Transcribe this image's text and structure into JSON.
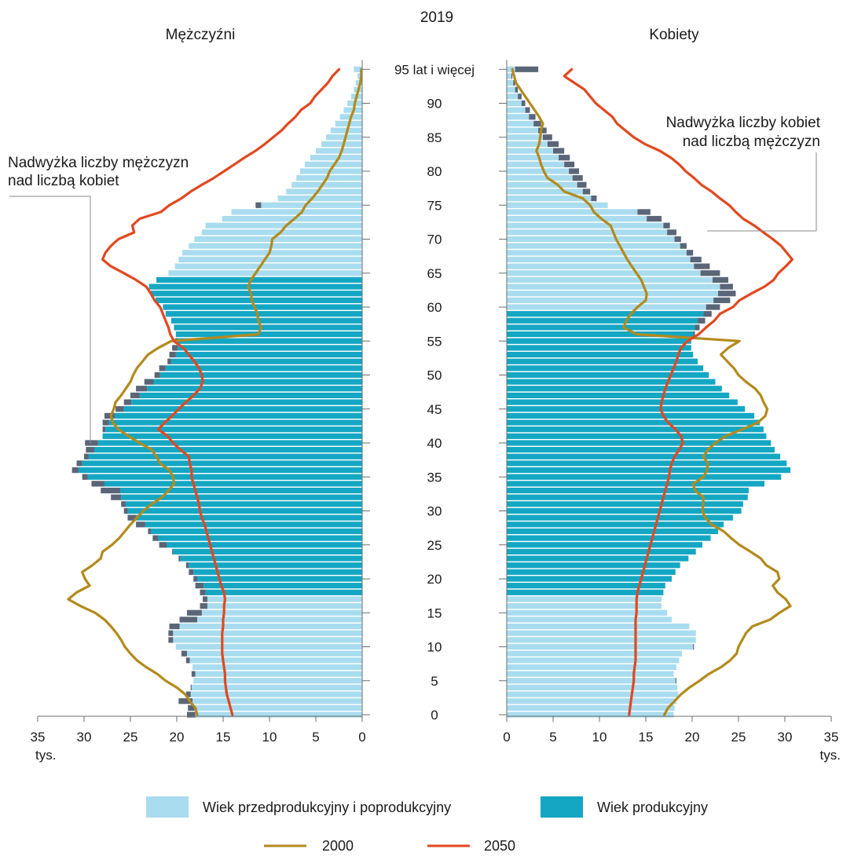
{
  "chart_data": {
    "type": "population-pyramid",
    "title": "2019",
    "left_title": "Mężczyźni",
    "right_title": "Kobiety",
    "x_unit": "tys.",
    "xlim": [
      0,
      35
    ],
    "x_ticks": [
      0,
      5,
      10,
      15,
      20,
      25,
      30,
      35
    ],
    "age_tick_labels": [
      "0",
      "5",
      "10",
      "15",
      "20",
      "25",
      "30",
      "35",
      "40",
      "45",
      "50",
      "55",
      "60",
      "65",
      "70",
      "75",
      "80",
      "85",
      "90",
      "95 lat i więcej"
    ],
    "annotations": {
      "male_surplus": [
        "Nadwyżka liczby mężczyzn",
        "nad liczbą kobiet"
      ],
      "female_surplus": [
        "Nadwyżka liczby kobiet",
        "nad liczbą mężczyzn"
      ]
    },
    "legend": {
      "nonworking_label": "Wiek przedprodukcyjny i poprodukcyjny",
      "working_label": "Wiek produkcyjny",
      "line_2000_label": "2000",
      "line_2050_label": "2050"
    },
    "colors": {
      "nonworking": "#a9dcef",
      "working": "#14a7c4",
      "surplus": "#5a6577",
      "line_2000": "#b38a1b",
      "line_2050": "#e1481f"
    },
    "working_age": {
      "male": [
        18,
        64
      ],
      "female": [
        18,
        59
      ]
    },
    "ages": [
      0,
      1,
      2,
      3,
      4,
      5,
      6,
      7,
      8,
      9,
      10,
      11,
      12,
      13,
      14,
      15,
      16,
      17,
      18,
      19,
      20,
      21,
      22,
      23,
      24,
      25,
      26,
      27,
      28,
      29,
      30,
      31,
      32,
      33,
      34,
      35,
      36,
      37,
      38,
      39,
      40,
      41,
      42,
      43,
      44,
      45,
      46,
      47,
      48,
      49,
      50,
      51,
      52,
      53,
      54,
      55,
      56,
      57,
      58,
      59,
      60,
      61,
      62,
      63,
      64,
      65,
      66,
      67,
      68,
      69,
      70,
      71,
      72,
      73,
      74,
      75,
      76,
      77,
      78,
      79,
      80,
      81,
      82,
      83,
      84,
      85,
      86,
      87,
      88,
      89,
      90,
      91,
      92,
      93,
      94,
      95
    ],
    "male_2019": [
      18.9,
      18.8,
      19.8,
      19.0,
      18.5,
      18.2,
      18.4,
      18.3,
      19.0,
      19.5,
      20.1,
      20.9,
      20.9,
      20.8,
      19.7,
      18.9,
      17.5,
      17.2,
      17.5,
      18.0,
      18.2,
      18.7,
      19.0,
      19.8,
      20.5,
      21.9,
      22.6,
      23.1,
      24.4,
      25.3,
      25.7,
      26.0,
      27.1,
      28.2,
      29.2,
      30.2,
      31.3,
      30.8,
      30.0,
      29.8,
      29.9,
      28.0,
      28.0,
      28.0,
      27.8,
      26.6,
      25.7,
      25.0,
      24.4,
      23.5,
      22.4,
      21.9,
      21.0,
      20.8,
      20.5,
      20.2,
      20.1,
      20.3,
      20.6,
      21.2,
      21.5,
      22.3,
      22.8,
      23.0,
      22.2,
      20.9,
      20.2,
      19.8,
      19.4,
      18.7,
      18.1,
      17.3,
      16.9,
      15.1,
      14.1,
      11.5,
      9.1,
      8.2,
      7.6,
      7.1,
      6.7,
      6.2,
      5.6,
      5.0,
      4.4,
      3.9,
      3.4,
      2.9,
      2.4,
      2.0,
      1.6,
      1.2,
      0.9,
      0.7,
      0.5,
      0.9
    ],
    "female_2019": [
      18.0,
      18.1,
      18.3,
      18.5,
      18.4,
      18.3,
      18.0,
      18.3,
      18.6,
      18.9,
      20.2,
      20.4,
      20.4,
      19.7,
      17.8,
      17.3,
      16.7,
      16.7,
      16.9,
      17.1,
      17.8,
      18.2,
      18.7,
      19.6,
      20.4,
      21.1,
      22.0,
      22.8,
      23.4,
      24.4,
      25.3,
      25.5,
      26.0,
      26.1,
      27.8,
      29.6,
      30.6,
      30.2,
      29.5,
      28.9,
      28.5,
      28.0,
      27.7,
      27.3,
      26.7,
      25.7,
      24.9,
      24.0,
      23.2,
      22.5,
      21.8,
      21.2,
      20.6,
      20.1,
      19.9,
      19.9,
      20.3,
      20.8,
      21.4,
      22.1,
      23.0,
      24.1,
      24.7,
      24.4,
      23.9,
      23.0,
      21.9,
      21.0,
      20.1,
      19.4,
      18.8,
      18.3,
      17.6,
      16.7,
      15.5,
      10.9,
      9.7,
      9.0,
      8.6,
      8.2,
      7.8,
      7.3,
      6.8,
      6.2,
      5.6,
      4.9,
      4.3,
      3.7,
      3.1,
      2.5,
      2.0,
      1.6,
      1.2,
      0.9,
      0.6,
      3.4
    ],
    "line_2000_male": [
      17.8,
      18.0,
      18.6,
      19.1,
      20.0,
      21.2,
      22.1,
      23.3,
      24.3,
      25.0,
      25.6,
      26.0,
      26.5,
      27.1,
      27.8,
      28.8,
      30.4,
      31.7,
      30.8,
      29.4,
      29.9,
      30.2,
      29.1,
      28.2,
      28.0,
      27.0,
      26.2,
      25.6,
      25.0,
      24.3,
      23.6,
      22.7,
      21.6,
      20.9,
      20.3,
      20.4,
      20.8,
      21.8,
      22.2,
      22.7,
      24.0,
      25.2,
      26.3,
      26.9,
      27.1,
      26.8,
      26.6,
      26.0,
      25.5,
      25.0,
      24.7,
      24.3,
      23.7,
      23.1,
      22.0,
      20.6,
      11.2,
      10.9,
      11.2,
      11.3,
      11.6,
      11.9,
      12.0,
      12.3,
      12.0,
      11.5,
      11.0,
      10.5,
      10.0,
      9.8,
      9.7,
      8.8,
      8.2,
      7.3,
      6.5,
      6.1,
      5.4,
      4.8,
      4.3,
      3.8,
      3.5,
      3.0,
      2.5,
      2.2,
      2.0,
      1.8,
      1.6,
      1.4,
      1.2,
      0.9,
      0.8,
      0.6,
      0.4,
      0.2,
      0.1,
      0.1
    ],
    "line_2000_female": [
      17.0,
      17.4,
      18.1,
      18.8,
      19.7,
      20.8,
      21.8,
      23.1,
      24.1,
      24.8,
      25.0,
      25.4,
      25.8,
      26.5,
      28.4,
      29.4,
      30.6,
      30.1,
      29.2,
      28.7,
      29.4,
      29.2,
      28.0,
      27.4,
      26.3,
      25.1,
      24.2,
      23.4,
      22.1,
      21.4,
      21.1,
      21.2,
      21.2,
      20.3,
      20.1,
      21.2,
      21.6,
      21.7,
      21.2,
      21.7,
      22.5,
      23.6,
      25.4,
      27.1,
      27.9,
      28.1,
      27.7,
      27.4,
      26.8,
      25.8,
      25.0,
      24.5,
      23.8,
      23.1,
      23.9,
      25.1,
      14.0,
      12.6,
      12.9,
      13.4,
      14.1,
      15.0,
      15.1,
      14.8,
      14.5,
      14.0,
      13.5,
      13.0,
      12.6,
      12.2,
      11.8,
      11.5,
      11.2,
      10.2,
      9.4,
      9.0,
      8.2,
      6.2,
      5.5,
      4.4,
      4.0,
      3.7,
      3.5,
      3.2,
      3.5,
      3.6,
      3.7,
      3.9,
      3.5,
      3.0,
      2.5,
      2.0,
      1.5,
      1.0,
      0.8,
      0.6
    ],
    "line_2050_male": [
      14.0,
      14.2,
      14.4,
      14.6,
      14.7,
      14.8,
      14.8,
      14.9,
      15.0,
      15.1,
      15.1,
      15.1,
      15.1,
      15.0,
      15.0,
      14.9,
      14.9,
      14.8,
      14.9,
      15.2,
      15.4,
      15.6,
      15.8,
      16.0,
      16.2,
      16.4,
      16.6,
      16.8,
      17.0,
      17.3,
      17.5,
      17.6,
      17.8,
      18.0,
      18.2,
      18.4,
      18.4,
      18.6,
      18.7,
      19.6,
      20.4,
      21.0,
      22.0,
      21.3,
      20.5,
      19.8,
      19.0,
      18.2,
      17.5,
      17.2,
      17.3,
      17.6,
      18.1,
      18.7,
      19.3,
      20.3,
      20.7,
      20.9,
      21.2,
      21.5,
      21.8,
      22.4,
      22.8,
      23.3,
      24.4,
      25.7,
      27.1,
      28.0,
      27.7,
      27.1,
      26.3,
      24.6,
      24.8,
      24.0,
      21.7,
      20.8,
      19.5,
      18.5,
      17.3,
      16.0,
      14.9,
      13.8,
      12.7,
      11.5,
      10.5,
      9.6,
      8.7,
      8.0,
      7.2,
      6.6,
      5.6,
      5.1,
      4.4,
      3.7,
      3.2,
      2.5
    ],
    "line_2050_female": [
      13.2,
      13.3,
      13.4,
      13.5,
      13.6,
      13.7,
      13.7,
      13.8,
      13.9,
      13.9,
      13.9,
      13.9,
      13.9,
      13.9,
      13.9,
      14.0,
      14.0,
      14.0,
      14.1,
      14.3,
      14.5,
      14.7,
      14.9,
      15.1,
      15.3,
      15.5,
      15.7,
      15.9,
      16.1,
      16.3,
      16.5,
      16.7,
      16.9,
      17.1,
      17.3,
      17.5,
      17.6,
      17.8,
      18.1,
      18.6,
      19.0,
      18.8,
      18.2,
      17.4,
      16.9,
      16.6,
      16.7,
      16.9,
      17.1,
      17.4,
      17.7,
      18.0,
      18.3,
      18.5,
      18.8,
      19.5,
      20.7,
      21.5,
      22.4,
      23.0,
      24.4,
      25.1,
      26.4,
      27.8,
      28.8,
      29.3,
      30.1,
      30.8,
      30.2,
      29.6,
      28.7,
      27.7,
      26.7,
      25.5,
      24.7,
      24.0,
      23.0,
      22.1,
      21.0,
      20.2,
      19.3,
      18.6,
      17.7,
      16.5,
      14.9,
      13.7,
      12.8,
      11.9,
      11.4,
      10.5,
      9.6,
      9.0,
      8.4,
      7.3,
      6.2,
      7.0
    ]
  }
}
